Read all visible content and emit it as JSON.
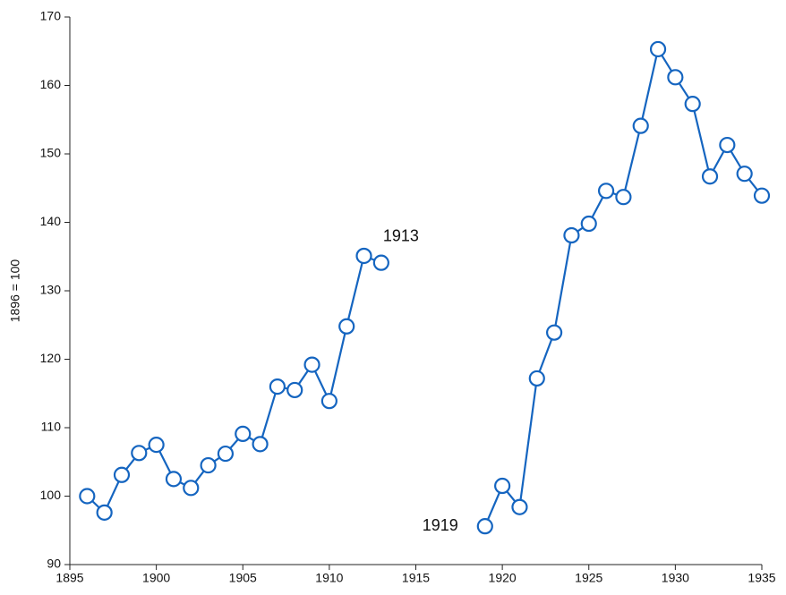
{
  "chart_data": {
    "type": "line",
    "y_label": "1896 = 100",
    "x": [
      1896,
      1897,
      1898,
      1899,
      1900,
      1901,
      1902,
      1903,
      1904,
      1905,
      1906,
      1907,
      1908,
      1909,
      1910,
      1911,
      1912,
      1913,
      1914,
      1915,
      1916,
      1917,
      1918,
      1919,
      1920,
      1921,
      1922,
      1923,
      1924,
      1925,
      1926,
      1927,
      1928,
      1929,
      1930,
      1931,
      1932,
      1933,
      1934,
      1935
    ],
    "series": [
      {
        "color": "#1565c0",
        "values": [
          100.0,
          97.6,
          103.1,
          106.3,
          107.5,
          102.5,
          101.2,
          104.5,
          106.2,
          109.1,
          107.6,
          116.0,
          115.5,
          119.2,
          113.9,
          124.8,
          135.1,
          134.1,
          null,
          null,
          null,
          null,
          null,
          95.6,
          101.5,
          98.4,
          117.2,
          123.9,
          138.1,
          139.8,
          144.6,
          143.7,
          154.1,
          165.3,
          161.2,
          157.3,
          146.7,
          151.3,
          147.1,
          143.9
        ]
      }
    ],
    "annotations": [
      "1913",
      "1919"
    ],
    "xlim": [
      1895,
      1935
    ],
    "xticks": [
      1895,
      1900,
      1905,
      1910,
      1915,
      1920,
      1925,
      1930,
      1935
    ],
    "ylim": [
      90,
      170
    ],
    "yticks": [
      90,
      100,
      110,
      120,
      130,
      140,
      150,
      160,
      170
    ],
    "grid": false
  }
}
